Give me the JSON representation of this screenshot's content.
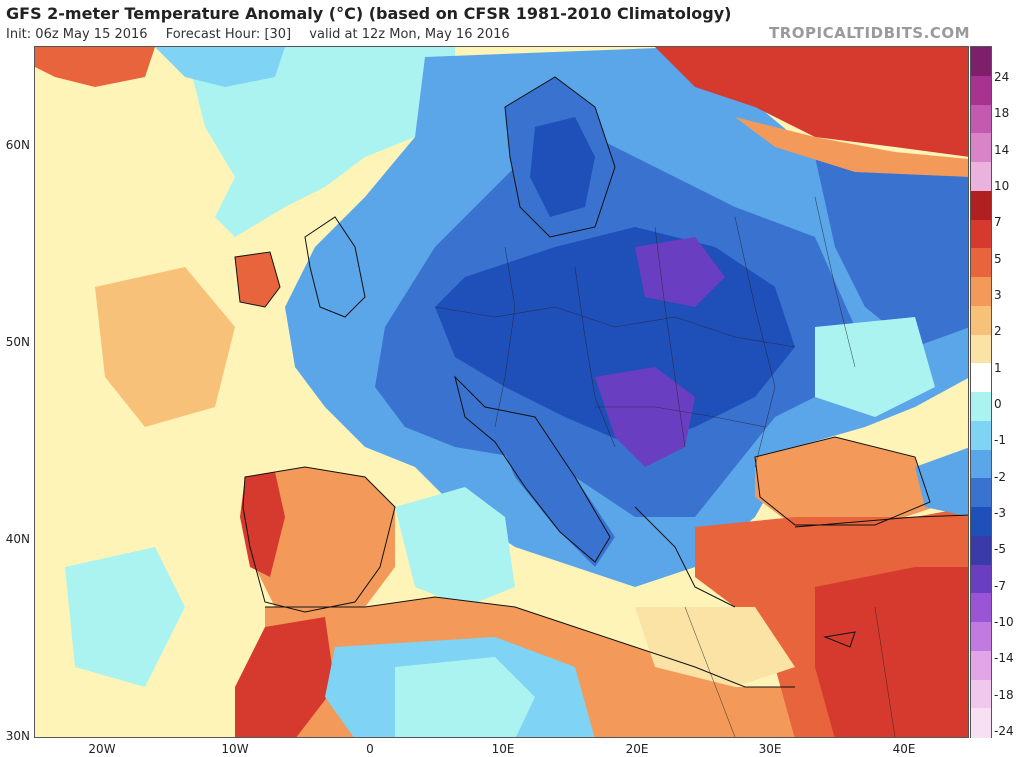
{
  "header": {
    "title": "GFS 2-meter Temperature Anomaly (°C) (based on CFSR 1981-2010 Climatology)",
    "init": "Init: 06z May 15 2016",
    "forecast_hour": "Forecast Hour: [30]",
    "valid": "valid at 12z Mon, May 16 2016",
    "credit": "TROPICALTIDBITS.COM"
  },
  "axes": {
    "lat_labels": [
      "60N",
      "50N",
      "40N",
      "30N"
    ],
    "lon_labels": [
      "20W",
      "10W",
      "0",
      "10E",
      "20E",
      "30E",
      "40E"
    ]
  },
  "colorbar": {
    "labels": [
      "24",
      "18",
      "14",
      "10",
      "7",
      "5",
      "3",
      "2",
      "1",
      "0",
      "-1",
      "-2",
      "-3",
      "-5",
      "-7",
      "-10",
      "-14",
      "-18",
      "-24"
    ],
    "colors": [
      "#7d1f6b",
      "#a8328f",
      "#c45ab0",
      "#d983c8",
      "#ebb2de",
      "#b02020",
      "#d63a2e",
      "#e8643c",
      "#f39a5a",
      "#f8c17a",
      "#fbe3a6",
      "#ffffff",
      "#aaf3f0",
      "#7fd3f5",
      "#5ba6e8",
      "#3a72d0",
      "#1f4fb8",
      "#3a3aa8",
      "#6a3ec0",
      "#9a55d6",
      "#c07ae0",
      "#e2a6e8",
      "#f0c8ee",
      "#f8e0f4"
    ]
  },
  "map_colors": {
    "ocean_warm": "#fff4b8",
    "light_warm": "#fbe3a6",
    "orange": "#f39a5a",
    "red": "#d63a2e",
    "cyan": "#aaf3f0",
    "light_blue": "#7fd3f5",
    "blue": "#3a72d0",
    "dark_blue": "#1f4fb8",
    "purple": "#6a3ec0"
  }
}
